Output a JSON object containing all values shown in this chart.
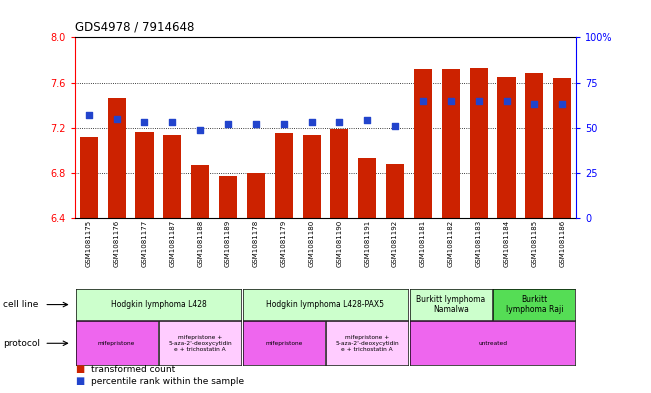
{
  "title": "GDS4978 / 7914648",
  "samples": [
    "GSM1081175",
    "GSM1081176",
    "GSM1081177",
    "GSM1081187",
    "GSM1081188",
    "GSM1081189",
    "GSM1081178",
    "GSM1081179",
    "GSM1081180",
    "GSM1081190",
    "GSM1081191",
    "GSM1081192",
    "GSM1081181",
    "GSM1081182",
    "GSM1081183",
    "GSM1081184",
    "GSM1081185",
    "GSM1081186"
  ],
  "bar_values": [
    7.12,
    7.46,
    7.16,
    7.14,
    6.87,
    6.77,
    6.8,
    7.15,
    7.14,
    7.19,
    6.93,
    6.88,
    7.72,
    7.72,
    7.73,
    7.65,
    7.68,
    7.64
  ],
  "dot_values": [
    57,
    55,
    53,
    53,
    49,
    52,
    52,
    52,
    53,
    53,
    54,
    51,
    65,
    65,
    65,
    65,
    63,
    63
  ],
  "ylim_left": [
    6.4,
    8.0
  ],
  "ylim_right": [
    0,
    100
  ],
  "yticks_left": [
    6.4,
    6.8,
    7.2,
    7.6,
    8.0
  ],
  "yticks_right": [
    0,
    25,
    50,
    75,
    100
  ],
  "bar_color": "#cc2200",
  "dot_color": "#2244cc",
  "cell_line_groups": [
    {
      "label": "Hodgkin lymphoma L428",
      "start": 0,
      "end": 6,
      "color": "#ccffcc"
    },
    {
      "label": "Hodgkin lymphoma L428-PAX5",
      "start": 6,
      "end": 12,
      "color": "#ccffcc"
    },
    {
      "label": "Burkitt lymphoma\nNamalwa",
      "start": 12,
      "end": 15,
      "color": "#ccffcc"
    },
    {
      "label": "Burkitt\nlymphoma Raji",
      "start": 15,
      "end": 18,
      "color": "#55dd55"
    }
  ],
  "protocol_groups": [
    {
      "label": "mifepristone",
      "start": 0,
      "end": 3,
      "color": "#ee66ee"
    },
    {
      "label": "mifepristone +\n5-aza-2'-deoxycytidin\ne + trichostatin A",
      "start": 3,
      "end": 6,
      "color": "#ffccff"
    },
    {
      "label": "mifepristone",
      "start": 6,
      "end": 9,
      "color": "#ee66ee"
    },
    {
      "label": "mifepristone +\n5-aza-2'-deoxycytidin\ne + trichostatin A",
      "start": 9,
      "end": 12,
      "color": "#ffccff"
    },
    {
      "label": "untreated",
      "start": 12,
      "end": 18,
      "color": "#ee66ee"
    }
  ],
  "legend_items": [
    {
      "label": "transformed count",
      "color": "#cc2200"
    },
    {
      "label": "percentile rank within the sample",
      "color": "#2244cc"
    }
  ]
}
